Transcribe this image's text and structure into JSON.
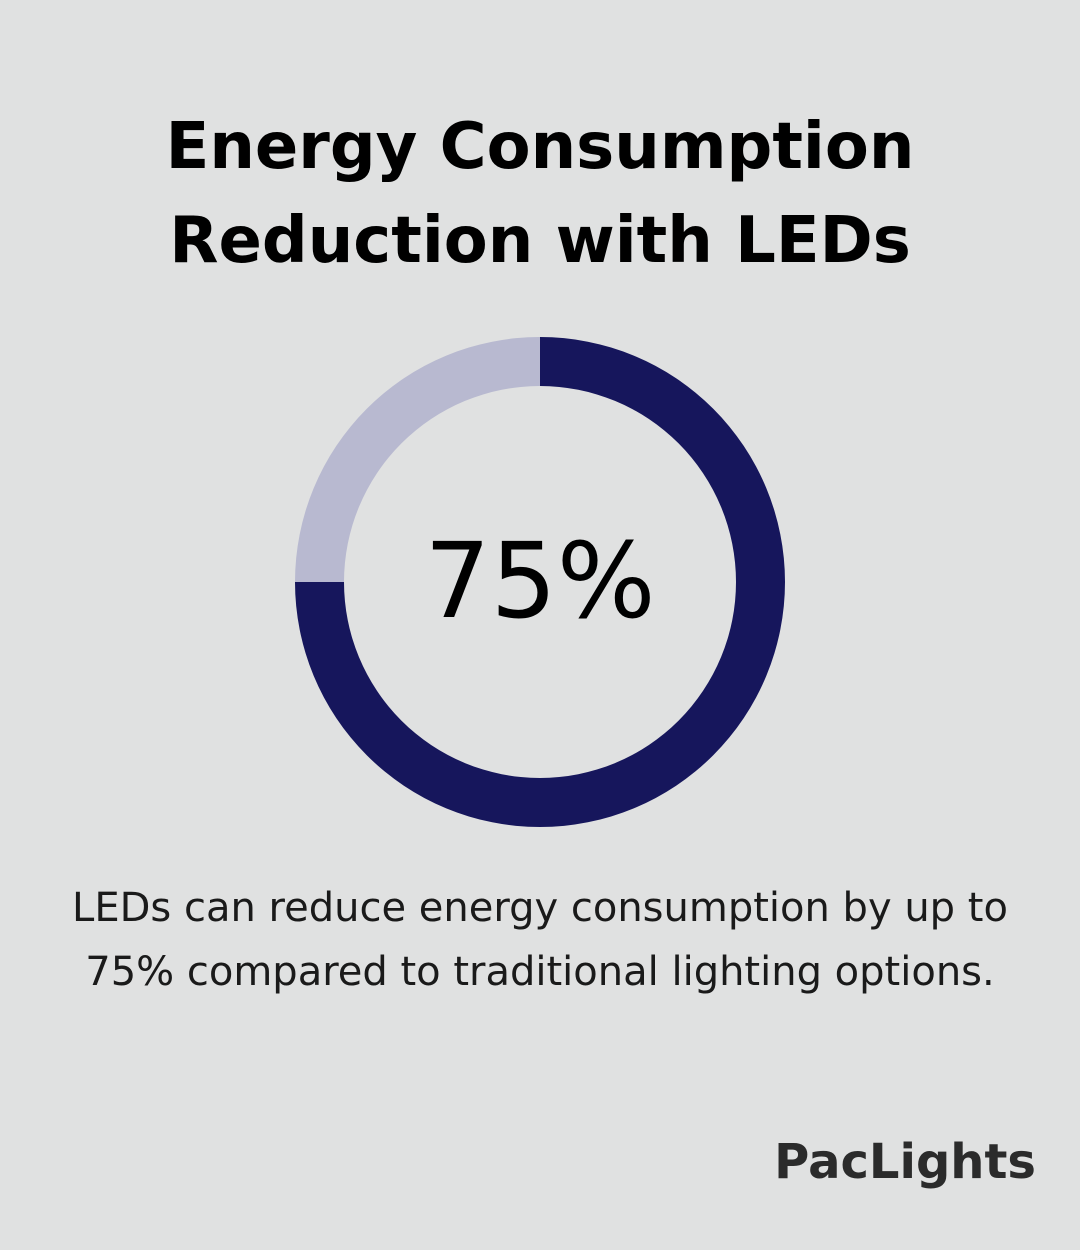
{
  "title": {
    "line1": "Energy Consumption",
    "line2": "Reduction with LEDs"
  },
  "chart_data": {
    "type": "pie",
    "values": [
      75,
      25
    ],
    "center_label": "75%",
    "colors": [
      "#16165c",
      "#b8b9d0"
    ]
  },
  "description": "LEDs can reduce energy consumption by up to 75% compared to traditional lighting options.",
  "brand": "PacLights"
}
